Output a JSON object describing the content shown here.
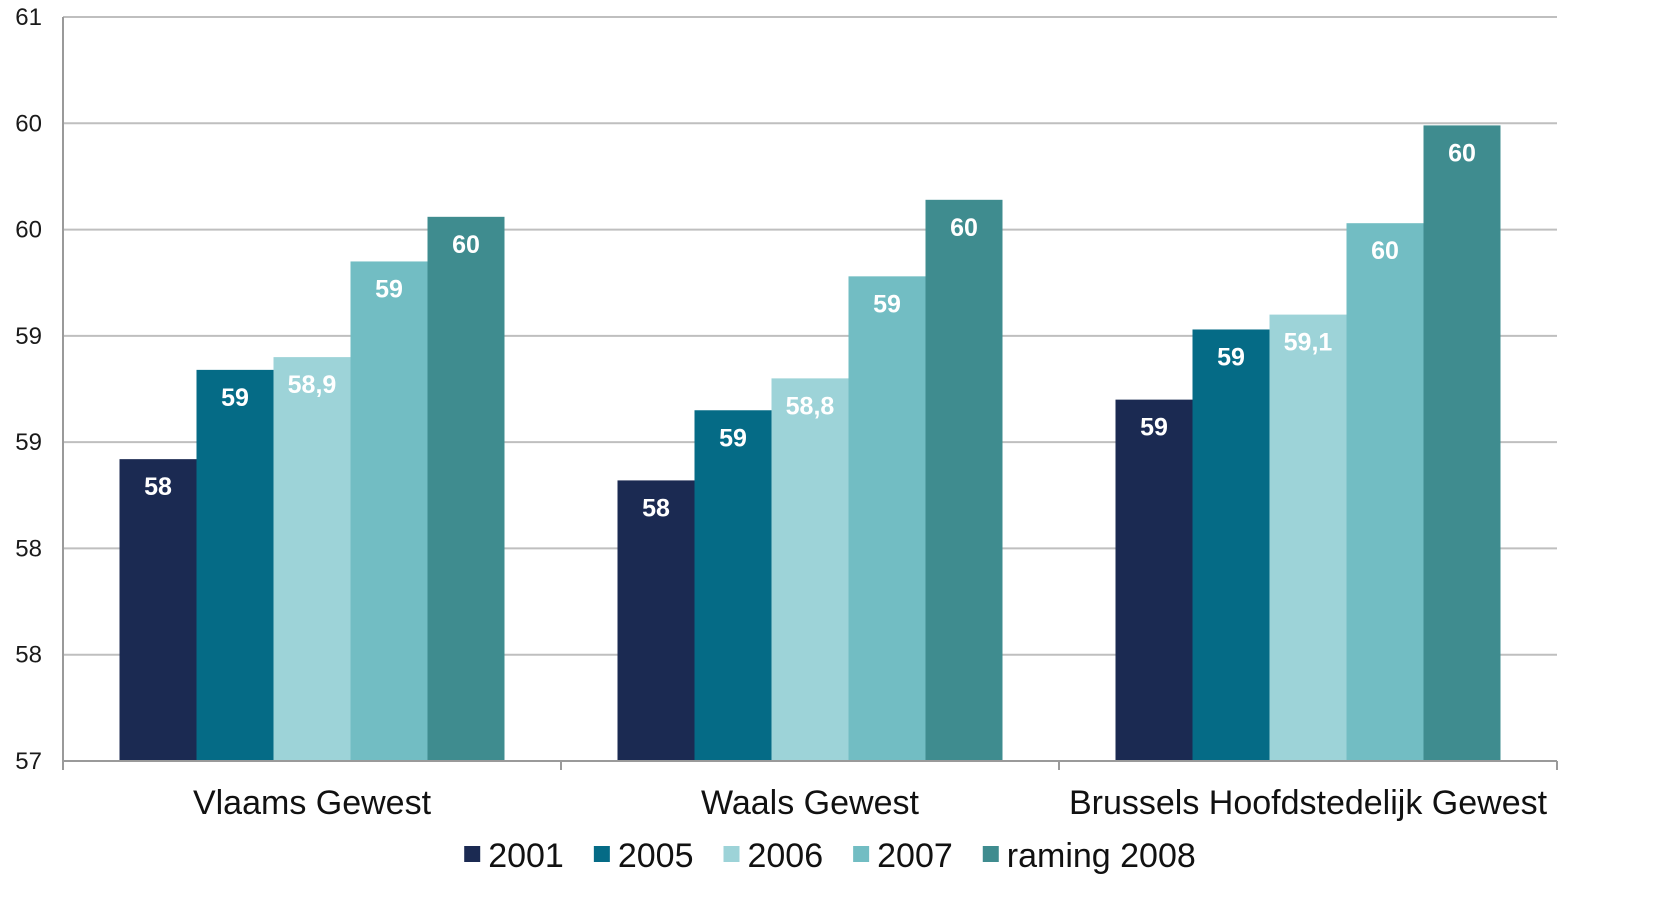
{
  "chart_data": {
    "type": "bar",
    "title": "",
    "xlabel": "",
    "ylabel": "",
    "ylim": [
      57,
      60.5
    ],
    "y_ticks": [
      57,
      57.5,
      58,
      58.5,
      59,
      59.5,
      60,
      60.5
    ],
    "y_tick_labels": [
      "57",
      "58",
      "58",
      "59",
      "59",
      "60",
      "60",
      "61"
    ],
    "grid": "horizontal",
    "legend_position": "bottom",
    "categories": [
      "Vlaams Gewest",
      "Waals Gewest",
      "Brussels Hoofdstedelijk Gewest"
    ],
    "series": [
      {
        "name": "2001",
        "color": "#1b2a52",
        "values": [
          58.42,
          58.32,
          58.7
        ],
        "labels": [
          "58",
          "58",
          "59"
        ]
      },
      {
        "name": "2005",
        "color": "#056b86",
        "values": [
          58.84,
          58.65,
          59.03
        ],
        "labels": [
          "59",
          "59",
          "59"
        ]
      },
      {
        "name": "2006",
        "color": "#9dd3d8",
        "values": [
          58.9,
          58.8,
          59.1
        ],
        "labels": [
          "58,9",
          "58,8",
          "59,1"
        ]
      },
      {
        "name": "2007",
        "color": "#72bdc3",
        "values": [
          59.35,
          59.28,
          59.53
        ],
        "labels": [
          "59",
          "59",
          "60"
        ]
      },
      {
        "name": "raming 2008",
        "color": "#3f8c8f",
        "values": [
          59.56,
          59.64,
          59.99
        ],
        "labels": [
          "60",
          "60",
          "60"
        ]
      }
    ]
  }
}
